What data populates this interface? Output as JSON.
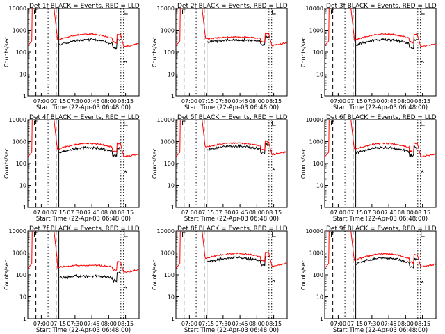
{
  "figure": {
    "panel_count": 9,
    "background": "#ffffff"
  },
  "chart_data": [
    {
      "type": "line",
      "title": "Det 1f BLACK = Events, RED = LLD",
      "xlabel": "Start Time (22-Apr-03 06:48:00)",
      "ylabel": "Counts/sec",
      "yscale": "log",
      "ylim": [
        1,
        10000
      ],
      "xtick_labels": [
        "07:00",
        "07:15",
        "07:30",
        "07:45",
        "08:00",
        "08:15"
      ],
      "ytick_labels": [
        "1",
        "10",
        "100",
        "1000",
        "10000"
      ],
      "series": [
        {
          "name": "BLACK = Events",
          "color": "#000000"
        },
        {
          "name": "RED = LLD",
          "color": "#ff0000"
        }
      ]
    },
    {
      "type": "line",
      "title": "Det 2f BLACK = Events, RED = LLD",
      "xlabel": "Start Time (22-Apr-03 06:48:00)",
      "ylabel": "Counts/sec",
      "yscale": "log",
      "ylim": [
        1,
        10000
      ],
      "xtick_labels": [
        "07:00",
        "07:15",
        "07:30",
        "07:45",
        "08:00",
        "08:15"
      ],
      "ytick_labels": [
        "1",
        "10",
        "100",
        "1000",
        "10000"
      ],
      "series": [
        {
          "name": "BLACK = Events",
          "color": "#000000"
        },
        {
          "name": "RED = LLD",
          "color": "#ff0000"
        }
      ]
    },
    {
      "type": "line",
      "title": "Det 3f BLACK = Events, RED = LLD",
      "xlabel": "Start Time (22-Apr-03 06:48:00)",
      "ylabel": "Counts/sec",
      "yscale": "log",
      "ylim": [
        1,
        10000
      ],
      "xtick_labels": [
        "07:00",
        "07:15",
        "07:30",
        "07:45",
        "08:00",
        "08:15"
      ],
      "ytick_labels": [
        "1",
        "10",
        "100",
        "1000",
        "10000"
      ],
      "series": [
        {
          "name": "BLACK = Events",
          "color": "#000000"
        },
        {
          "name": "RED = LLD",
          "color": "#ff0000"
        }
      ]
    },
    {
      "type": "line",
      "title": "Det 4f BLACK = Events, RED = LLD",
      "xlabel": "Start Time (22-Apr-03 06:48:00)",
      "ylabel": "Counts/sec",
      "yscale": "log",
      "ylim": [
        1,
        10000
      ],
      "xtick_labels": [
        "07:00",
        "07:15",
        "07:30",
        "07:45",
        "08:00",
        "08:15"
      ],
      "ytick_labels": [
        "1",
        "10",
        "100",
        "1000",
        "10000"
      ],
      "series": [
        {
          "name": "BLACK = Events",
          "color": "#000000"
        },
        {
          "name": "RED = LLD",
          "color": "#ff0000"
        }
      ]
    },
    {
      "type": "line",
      "title": "Det 5f BLACK = Events, RED = LLD",
      "xlabel": "Start Time (22-Apr-03 06:48:00)",
      "ylabel": "Counts/sec",
      "yscale": "log",
      "ylim": [
        1,
        10000
      ],
      "xtick_labels": [
        "07:00",
        "07:15",
        "07:30",
        "07:45",
        "08:00",
        "08:15"
      ],
      "ytick_labels": [
        "1",
        "10",
        "100",
        "1000",
        "10000"
      ],
      "series": [
        {
          "name": "BLACK = Events",
          "color": "#000000"
        },
        {
          "name": "RED = LLD",
          "color": "#ff0000"
        }
      ]
    },
    {
      "type": "line",
      "title": "Det 6f BLACK = Events, RED = LLD",
      "xlabel": "Start Time (22-Apr-03 06:48:00)",
      "ylabel": "Counts/sec",
      "yscale": "log",
      "ylim": [
        1,
        10000
      ],
      "xtick_labels": [
        "07:00",
        "07:15",
        "07:30",
        "07:45",
        "08:00",
        "08:15"
      ],
      "ytick_labels": [
        "1",
        "10",
        "100",
        "1000",
        "10000"
      ],
      "series": [
        {
          "name": "BLACK = Events",
          "color": "#000000"
        },
        {
          "name": "RED = LLD",
          "color": "#ff0000"
        }
      ]
    },
    {
      "type": "line",
      "title": "Det 7f BLACK = Events, RED = LLD",
      "xlabel": "Start Time (22-Apr-03 06:48:00)",
      "ylabel": "Counts/sec",
      "yscale": "log",
      "ylim": [
        1,
        10000
      ],
      "xtick_labels": [
        "07:00",
        "07:15",
        "07:30",
        "07:45",
        "08:00",
        "08:15"
      ],
      "ytick_labels": [
        "1",
        "10",
        "100",
        "1000",
        "10000"
      ],
      "series": [
        {
          "name": "BLACK = Events",
          "color": "#000000"
        },
        {
          "name": "RED = LLD",
          "color": "#ff0000"
        }
      ]
    },
    {
      "type": "line",
      "title": "Det 8f BLACK = Events, RED = LLD",
      "xlabel": "Start Time (22-Apr-03 06:48:00)",
      "ylabel": "Counts/sec",
      "yscale": "log",
      "ylim": [
        1,
        10000
      ],
      "xtick_labels": [
        "07:00",
        "07:15",
        "07:30",
        "07:45",
        "08:00",
        "08:15"
      ],
      "ytick_labels": [
        "1",
        "10",
        "100",
        "1000",
        "10000"
      ],
      "series": [
        {
          "name": "BLACK = Events",
          "color": "#000000"
        },
        {
          "name": "RED = LLD",
          "color": "#ff0000"
        }
      ]
    },
    {
      "type": "line",
      "title": "Det 9f BLACK = Events, RED = LLD",
      "xlabel": "Start Time (22-Apr-03 06:48:00)",
      "ylabel": "Counts/sec",
      "yscale": "log",
      "ylim": [
        1,
        10000
      ],
      "xtick_labels": [
        "07:00",
        "07:15",
        "07:30",
        "07:45",
        "08:00",
        "08:15"
      ],
      "ytick_labels": [
        "1",
        "10",
        "100",
        "1000",
        "10000"
      ],
      "series": [
        {
          "name": "BLACK = Events",
          "color": "#000000"
        },
        {
          "name": "RED = LLD",
          "color": "#ff0000"
        }
      ]
    }
  ]
}
